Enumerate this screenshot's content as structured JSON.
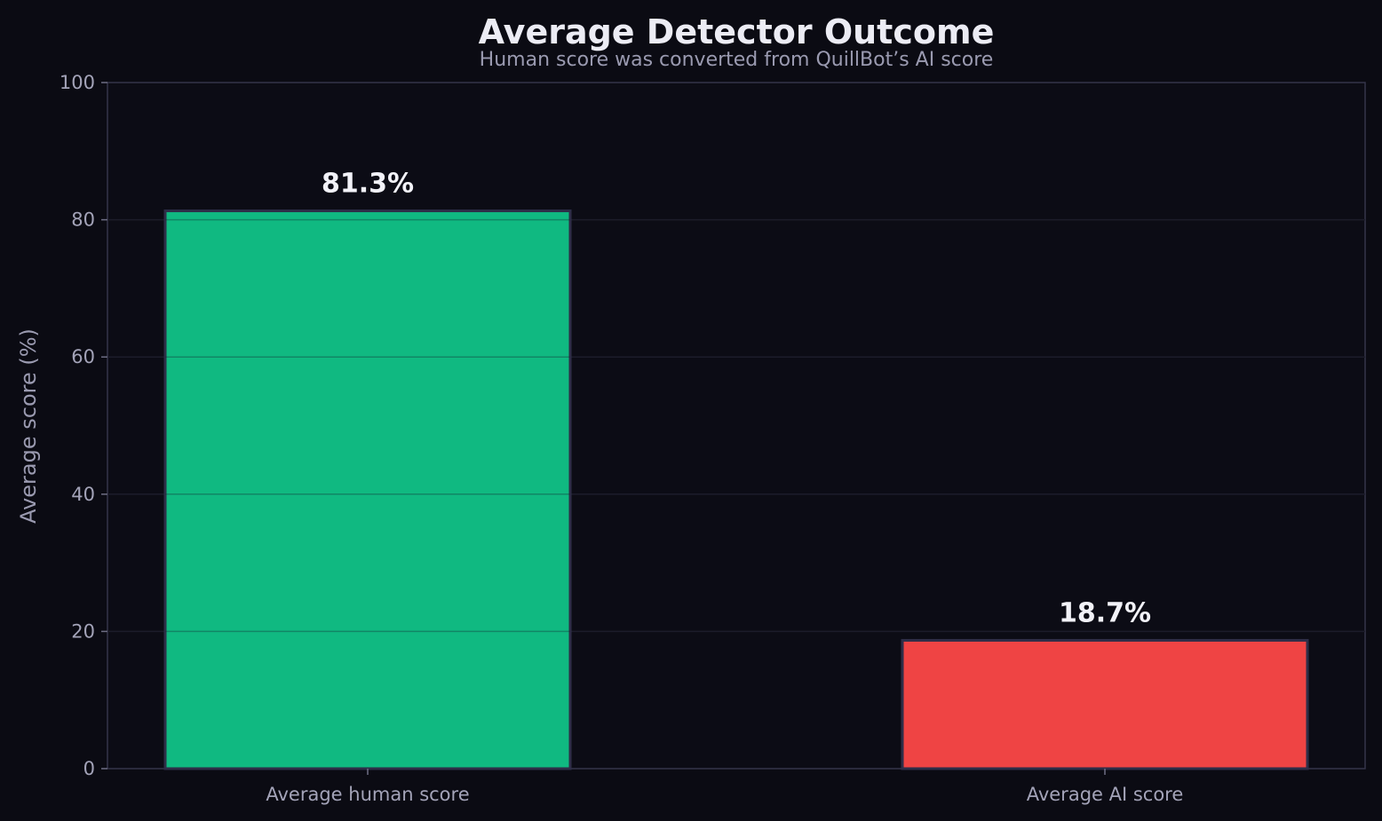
{
  "chart_data": {
    "type": "bar",
    "title": "Average Detector Outcome",
    "subtitle": "Human score was converted from QuillBot’s AI score",
    "xlabel": "",
    "ylabel": "Average score (%)",
    "ylim": [
      0,
      100
    ],
    "yticks": [
      "0",
      "20",
      "40",
      "60",
      "80",
      "100"
    ],
    "grid": true,
    "categories": [
      "Average human score",
      "Average AI score"
    ],
    "values": [
      81.3,
      18.7
    ],
    "data_labels": [
      "81.3%",
      "18.7%"
    ],
    "colors": [
      "#10b981",
      "#ef4444"
    ],
    "colors_extra": {
      "background": "#0b0b13",
      "gridline": "#1c1c2a",
      "axis": "#35354a",
      "bar_edge": "#2e2e48"
    }
  }
}
